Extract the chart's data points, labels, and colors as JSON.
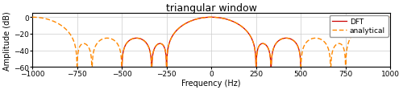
{
  "title": "triangular window",
  "xlabel": "Frequency (Hz)",
  "ylabel": "Amplitude (dB)",
  "xlim": [
    -1000,
    1000
  ],
  "ylim": [
    -60,
    5
  ],
  "yticks": [
    0,
    -20,
    -40,
    -60
  ],
  "xticks": [
    -1000,
    -750,
    -500,
    -250,
    0,
    250,
    500,
    750,
    1000
  ],
  "dft_color": "#cc0000",
  "analytical_color": "#ff8800",
  "dft_label": "DFT",
  "analytical_label": "analytical",
  "N": 8,
  "fs": 1000,
  "figsize": [
    5.0,
    1.13
  ],
  "dpi": 100,
  "title_fontsize": 9,
  "label_fontsize": 7,
  "tick_fontsize": 6.5,
  "legend_fontsize": 6.5
}
